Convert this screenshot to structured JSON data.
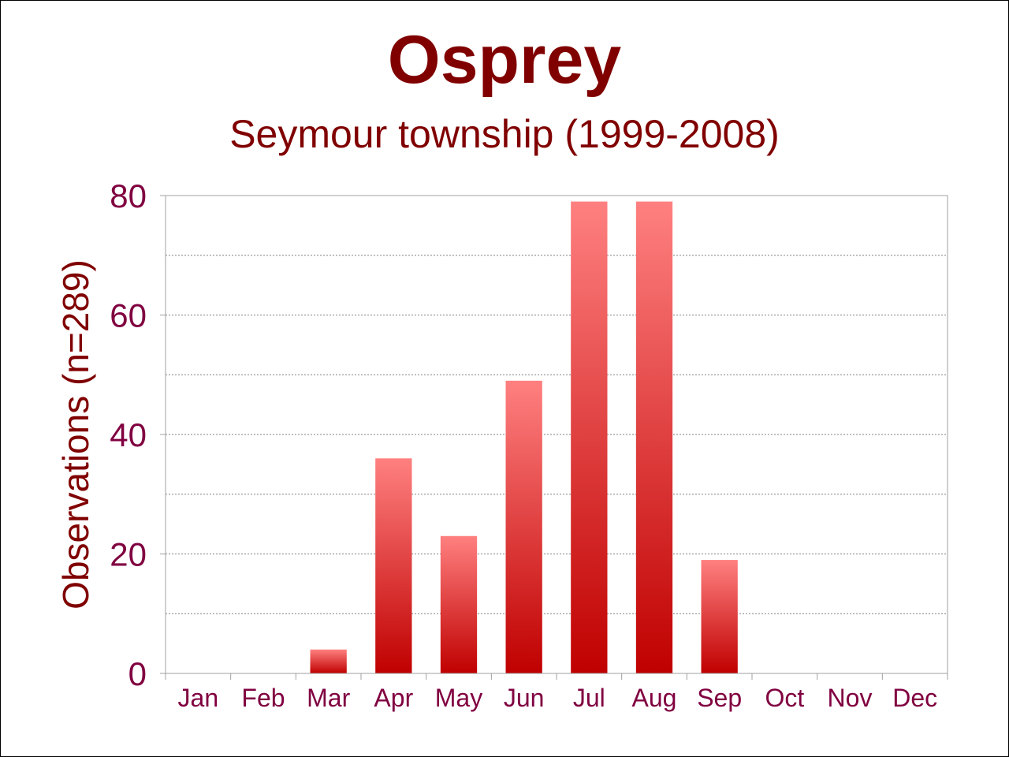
{
  "chart_data": {
    "type": "bar",
    "title": "Osprey",
    "subtitle": "Seymour township (1999-2008)",
    "ylabel": "Observations (n=289)",
    "xlabel": "",
    "categories": [
      "Jan",
      "Feb",
      "Mar",
      "Apr",
      "May",
      "Jun",
      "Jul",
      "Aug",
      "Sep",
      "Oct",
      "Nov",
      "Dec"
    ],
    "values": [
      0,
      0,
      4,
      36,
      23,
      49,
      79,
      79,
      19,
      0,
      0,
      0
    ],
    "ylim": [
      0,
      80
    ],
    "yticks": [
      "0",
      "20",
      "40",
      "60",
      "80"
    ],
    "grid": true,
    "legend": "none",
    "colors": {
      "bar_top": "#ff8080",
      "bar_bottom": "#c00000",
      "title": "#800000",
      "tick_labels": "#800040",
      "grid": "#808080",
      "axis": "#a0a0a0"
    }
  }
}
